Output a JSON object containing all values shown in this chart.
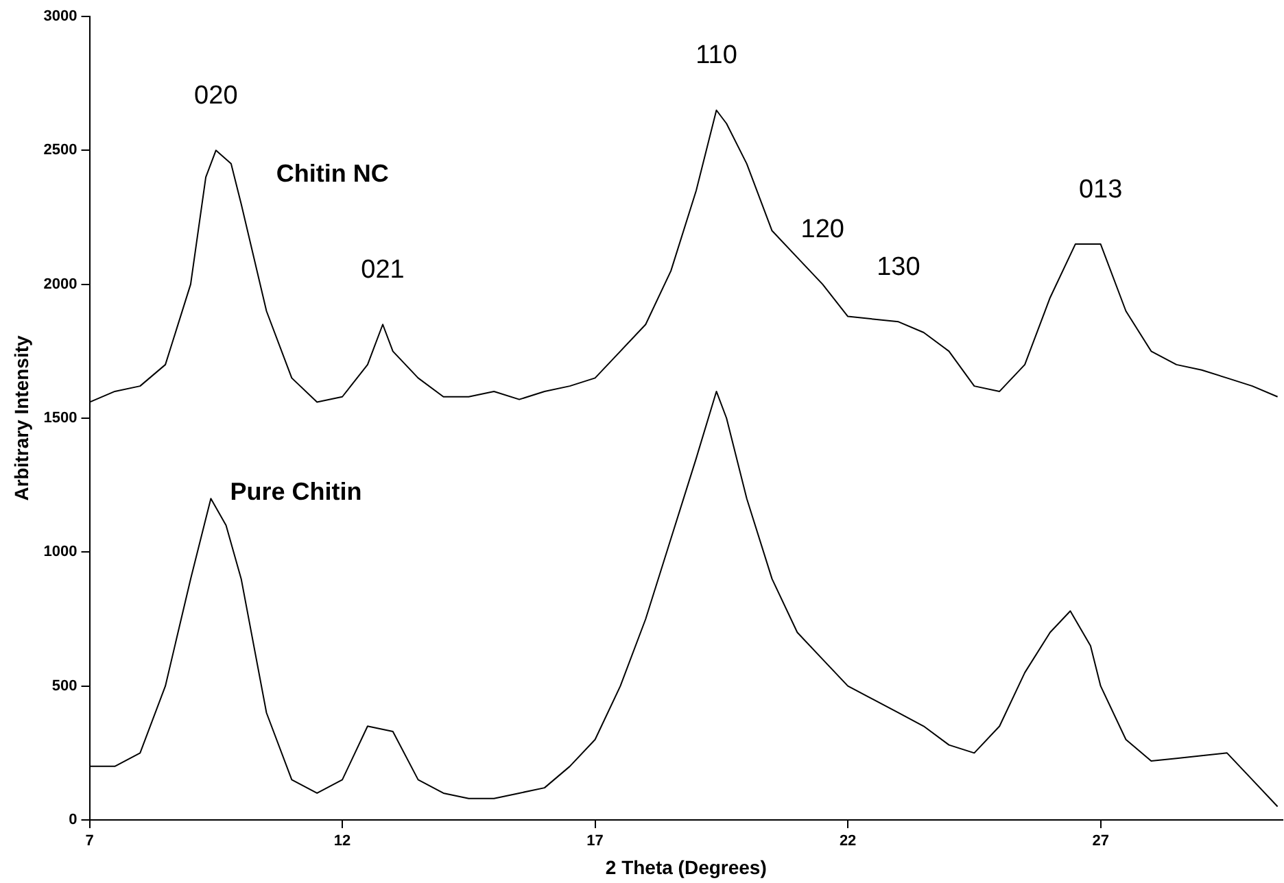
{
  "chart_data": {
    "type": "line",
    "xlabel": "2 Theta (Degrees)",
    "ylabel": "Arbitrary Intensity",
    "xlim": [
      7,
      30.6
    ],
    "xticks": [
      7,
      12,
      17,
      22,
      27
    ],
    "ylim": [
      0,
      3000
    ],
    "yticks": [
      0,
      500,
      1000,
      1500,
      2000,
      2500,
      3000
    ],
    "grid": false,
    "legend": false,
    "marker": "none",
    "line_style": "solid",
    "series": [
      {
        "name": "Chitin NC",
        "color": "#000000",
        "x": [
          7,
          7.5,
          8,
          8.5,
          9,
          9.3,
          9.5,
          9.8,
          10,
          10.5,
          11,
          11.5,
          12,
          12.5,
          12.8,
          13,
          13.5,
          14,
          14.5,
          15,
          15.5,
          16,
          16.5,
          17,
          17.5,
          18,
          18.5,
          19,
          19.4,
          19.6,
          20,
          20.5,
          21,
          21.5,
          22,
          22.5,
          23,
          23.5,
          24,
          24.5,
          25,
          25.5,
          26,
          26.5,
          27,
          27.5,
          28,
          28.5,
          29,
          29.5,
          30,
          30.5
        ],
        "values": [
          1560,
          1600,
          1620,
          1700,
          2000,
          2400,
          2500,
          2450,
          2300,
          1900,
          1650,
          1560,
          1580,
          1700,
          1850,
          1750,
          1650,
          1580,
          1580,
          1600,
          1570,
          1600,
          1620,
          1650,
          1750,
          1850,
          2050,
          2350,
          2650,
          2600,
          2450,
          2200,
          2100,
          2000,
          1880,
          1870,
          1860,
          1820,
          1750,
          1620,
          1600,
          1700,
          1950,
          2150,
          2150,
          1900,
          1750,
          1700,
          1680,
          1650,
          1620,
          1580
        ]
      },
      {
        "name": "Pure Chitin",
        "color": "#000000",
        "x": [
          7,
          7.5,
          8,
          8.5,
          9,
          9.4,
          9.7,
          10,
          10.5,
          11,
          11.5,
          12,
          12.5,
          13,
          13.5,
          14,
          14.5,
          15,
          15.5,
          16,
          16.5,
          17,
          17.5,
          18,
          18.5,
          19,
          19.4,
          19.6,
          20,
          20.5,
          21,
          21.5,
          22,
          22.5,
          23,
          23.5,
          24,
          24.5,
          25,
          25.5,
          26,
          26.4,
          26.8,
          27,
          27.5,
          28,
          28.5,
          29,
          29.5,
          30,
          30.5
        ],
        "values": [
          200,
          200,
          250,
          500,
          900,
          1200,
          1100,
          900,
          400,
          150,
          100,
          150,
          350,
          330,
          150,
          100,
          80,
          80,
          100,
          120,
          200,
          300,
          500,
          750,
          1050,
          1350,
          1600,
          1500,
          1200,
          900,
          700,
          600,
          500,
          450,
          400,
          350,
          280,
          250,
          350,
          550,
          700,
          780,
          650,
          500,
          300,
          220,
          230,
          240,
          250,
          150,
          50
        ]
      }
    ],
    "annotations": [
      {
        "text": "020",
        "x": 9.5,
        "y": 2500
      },
      {
        "text": "021",
        "x": 12.8,
        "y": 1850
      },
      {
        "text": "110",
        "x": 19.4,
        "y": 2650
      },
      {
        "text": "120",
        "x": 21.5,
        "y": 2000
      },
      {
        "text": "130",
        "x": 23,
        "y": 1860
      },
      {
        "text": "013",
        "x": 27,
        "y": 2150
      }
    ]
  }
}
